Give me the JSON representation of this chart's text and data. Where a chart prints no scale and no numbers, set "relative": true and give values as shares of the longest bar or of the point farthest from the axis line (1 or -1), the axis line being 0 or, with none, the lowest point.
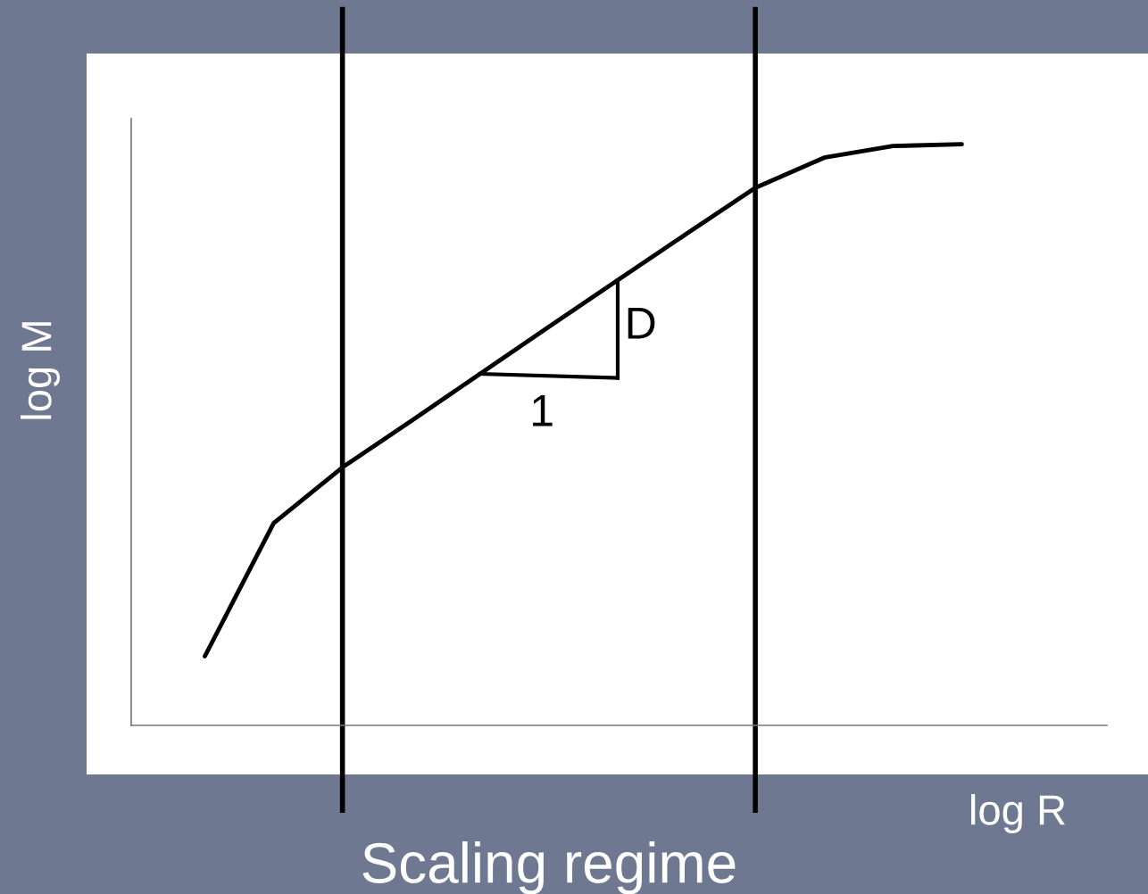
{
  "chart_data": {
    "type": "line",
    "relative": true,
    "xlabel": "log R",
    "ylabel": "log M",
    "categories": [
      null,
      null,
      null,
      null,
      null,
      null,
      null,
      null,
      null,
      null,
      null,
      null
    ],
    "series": [
      {
        "color": "#000000",
        "values": [
          0.119,
          0.348,
          0.444,
          0.524,
          0.605,
          0.686,
          0.766,
          0.846,
          0.925,
          0.977,
          0.997,
          1.0
        ]
      }
    ],
    "annotations": [
      "D",
      "1",
      "Scaling regime"
    ],
    "marker": "none",
    "line_style": "solid"
  }
}
